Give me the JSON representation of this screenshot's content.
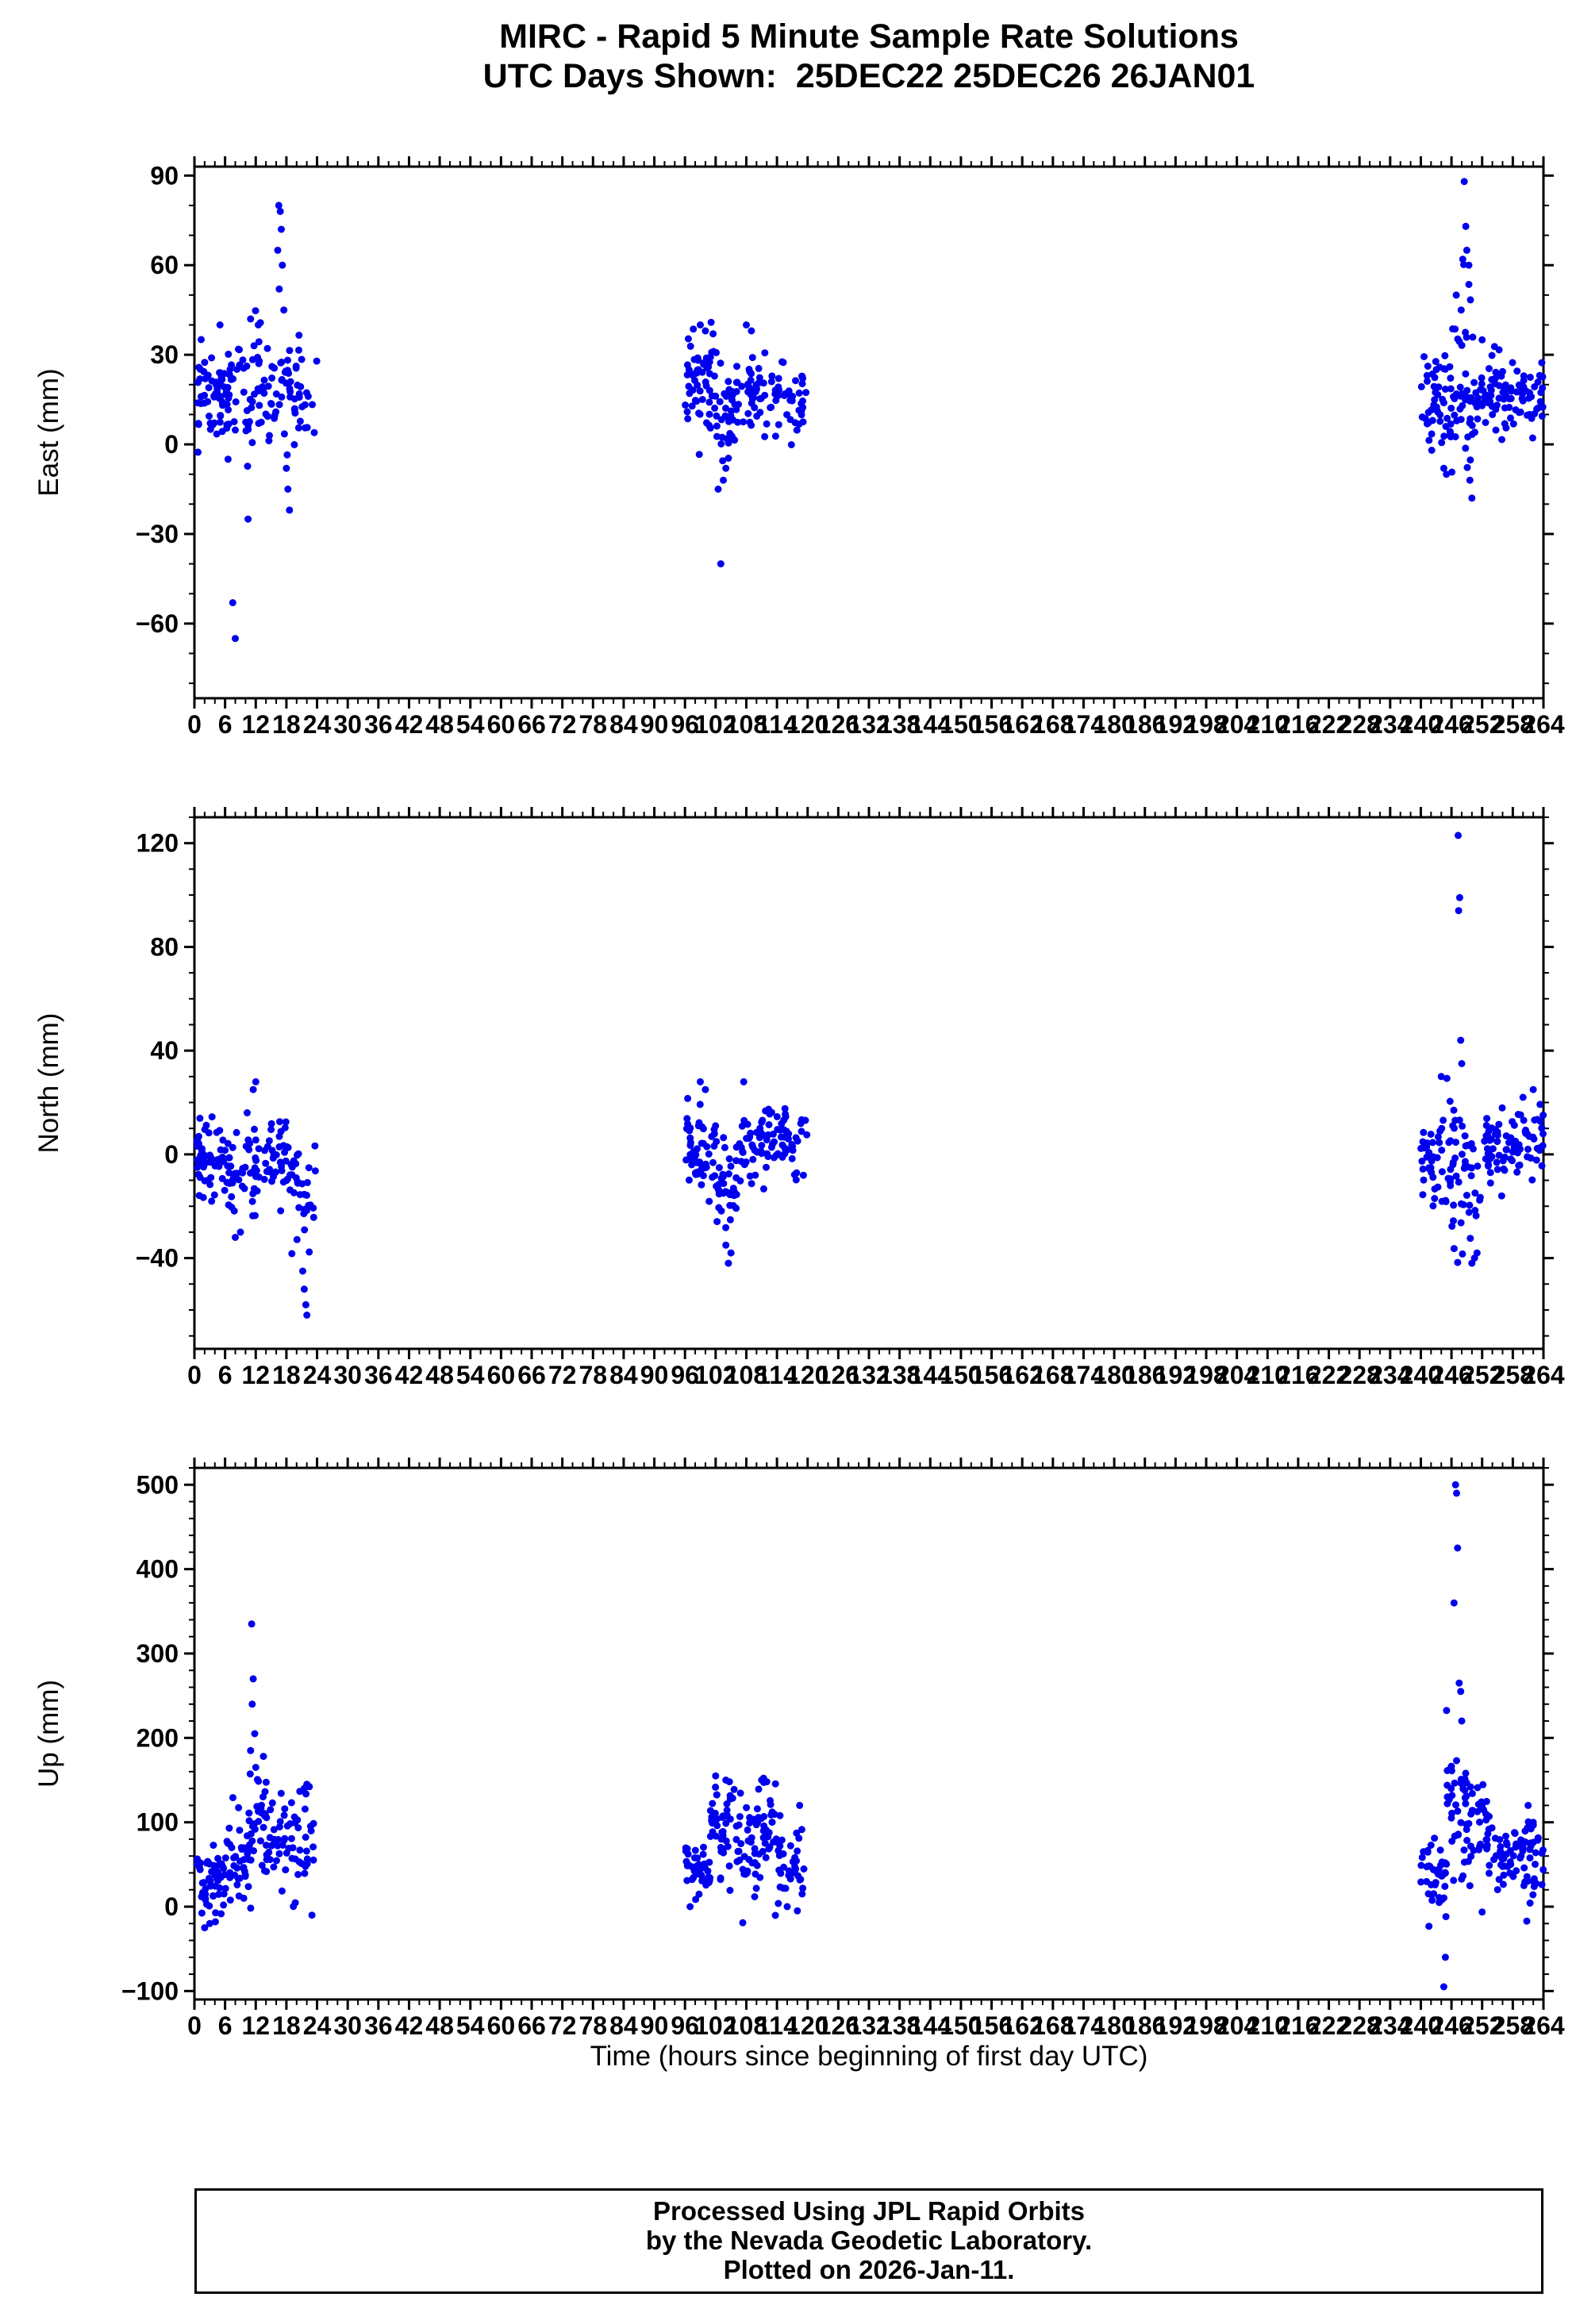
{
  "title": {
    "line1": "MIRC - Rapid 5 Minute Sample Rate Solutions",
    "line2": "UTC Days Shown:  25DEC22 25DEC26 26JAN01"
  },
  "axis_title_x": "Time (hours since beginning of first day UTC)",
  "caption": {
    "line1": "Processed Using JPL Rapid Orbits",
    "line2": "by the Nevada Geodetic Laboratory.",
    "line3": "Plotted on 2026-Jan-11."
  },
  "style": {
    "point_color": "#0000ee",
    "axis_color": "#000000",
    "background": "#ffffff"
  },
  "seed": 20260111,
  "chart_data": [
    {
      "type": "scatter",
      "ylabel": "East (mm)",
      "xlabel": "",
      "xlim": [
        0,
        264
      ],
      "ylim": [
        -85,
        93
      ],
      "xticks_major": 6,
      "xticks_minor": 2,
      "yticks": [
        90,
        60,
        30,
        0,
        -30,
        -60
      ],
      "yticks_minor": 10,
      "marker": "circle",
      "color": "#0000ee",
      "clusters": [
        {
          "label": "25DEC22",
          "segments": [
            {
              "x0": 0.5,
              "x1": 6,
              "n": 50,
              "mean": 16,
              "sd": 7
            },
            {
              "x0": 6,
              "x1": 12,
              "n": 45,
              "mean": 15,
              "sd": 11
            },
            {
              "x0": 12,
              "x1": 19,
              "n": 50,
              "mean": 20,
              "sd": 10
            },
            {
              "x0": 19,
              "x1": 24,
              "n": 25,
              "mean": 18,
              "sd": 7
            }
          ],
          "outliers": [
            [
              7.5,
              -53
            ],
            [
              8,
              -65
            ],
            [
              10.5,
              -25
            ],
            [
              16.5,
              80
            ],
            [
              16.8,
              78
            ],
            [
              17,
              72
            ],
            [
              16.3,
              65
            ],
            [
              17.2,
              60
            ],
            [
              16.6,
              52
            ],
            [
              17.5,
              45
            ],
            [
              18,
              -8
            ],
            [
              18.3,
              -15
            ],
            [
              18.6,
              -22
            ],
            [
              11,
              42
            ],
            [
              5,
              40
            ],
            [
              12.5,
              40
            ]
          ]
        },
        {
          "label": "25DEC26",
          "segments": [
            {
              "x0": 96,
              "x1": 102,
              "n": 55,
              "mean": 20,
              "sd": 8
            },
            {
              "x0": 102,
              "x1": 106,
              "n": 35,
              "mean": 10,
              "sd": 9
            },
            {
              "x0": 106,
              "x1": 113,
              "n": 45,
              "mean": 17,
              "sd": 7
            },
            {
              "x0": 113,
              "x1": 120,
              "n": 40,
              "mean": 15,
              "sd": 7
            }
          ],
          "outliers": [
            [
              103,
              -40
            ],
            [
              102.5,
              -15
            ],
            [
              103.5,
              -12
            ],
            [
              99,
              40
            ],
            [
              100,
              38
            ],
            [
              108,
              40
            ],
            [
              109,
              38
            ],
            [
              104,
              -8
            ]
          ]
        },
        {
          "label": "26JAN01",
          "segments": [
            {
              "x0": 240,
              "x1": 246,
              "n": 50,
              "mean": 14,
              "sd": 9
            },
            {
              "x0": 246,
              "x1": 251,
              "n": 45,
              "mean": 22,
              "sd": 14
            },
            {
              "x0": 251,
              "x1": 257,
              "n": 45,
              "mean": 17,
              "sd": 7
            },
            {
              "x0": 257,
              "x1": 264,
              "n": 45,
              "mean": 16,
              "sd": 6
            }
          ],
          "outliers": [
            [
              248.5,
              88
            ],
            [
              248.8,
              73
            ],
            [
              249,
              65
            ],
            [
              248.2,
              62
            ],
            [
              249.4,
              60
            ],
            [
              247.9,
              45
            ],
            [
              250,
              -18
            ],
            [
              249.6,
              -12
            ],
            [
              245,
              -10
            ],
            [
              244.5,
              -8
            ],
            [
              252,
              35
            ]
          ]
        }
      ]
    },
    {
      "type": "scatter",
      "ylabel": "North (mm)",
      "xlabel": "",
      "xlim": [
        0,
        264
      ],
      "ylim": [
        -75,
        130
      ],
      "xticks_major": 6,
      "xticks_minor": 2,
      "yticks": [
        120,
        80,
        40,
        0,
        -40
      ],
      "yticks_minor": 10,
      "marker": "circle",
      "color": "#0000ee",
      "clusters": [
        {
          "label": "25DEC22",
          "segments": [
            {
              "x0": 0.5,
              "x1": 6,
              "n": 50,
              "mean": -3,
              "sd": 7
            },
            {
              "x0": 6,
              "x1": 12,
              "n": 45,
              "mean": -4,
              "sd": 10
            },
            {
              "x0": 12,
              "x1": 19,
              "n": 45,
              "mean": -2,
              "sd": 8
            },
            {
              "x0": 19,
              "x1": 24,
              "n": 30,
              "mean": -15,
              "sd": 10
            }
          ],
          "outliers": [
            [
              21.2,
              -45
            ],
            [
              21.5,
              -52
            ],
            [
              21.8,
              -58
            ],
            [
              22,
              -62
            ],
            [
              12,
              28
            ],
            [
              11.5,
              25
            ],
            [
              8,
              -32
            ],
            [
              9,
              -30
            ]
          ]
        },
        {
          "label": "25DEC26",
          "segments": [
            {
              "x0": 96,
              "x1": 102,
              "n": 50,
              "mean": 2,
              "sd": 8
            },
            {
              "x0": 102,
              "x1": 107,
              "n": 40,
              "mean": -12,
              "sd": 11
            },
            {
              "x0": 107,
              "x1": 113,
              "n": 45,
              "mean": 4,
              "sd": 7
            },
            {
              "x0": 113,
              "x1": 120,
              "n": 40,
              "mean": 4,
              "sd": 6
            }
          ],
          "outliers": [
            [
              104.5,
              -42
            ],
            [
              105,
              -38
            ],
            [
              104,
              -35
            ],
            [
              99,
              28
            ],
            [
              107.5,
              28
            ],
            [
              100,
              25
            ]
          ]
        },
        {
          "label": "26JAN01",
          "segments": [
            {
              "x0": 240,
              "x1": 246,
              "n": 45,
              "mean": -2,
              "sd": 12
            },
            {
              "x0": 246,
              "x1": 252,
              "n": 45,
              "mean": -8,
              "sd": 14
            },
            {
              "x0": 252,
              "x1": 258,
              "n": 45,
              "mean": 3,
              "sd": 8
            },
            {
              "x0": 258,
              "x1": 264,
              "n": 40,
              "mean": 4,
              "sd": 7
            }
          ],
          "outliers": [
            [
              247.3,
              123
            ],
            [
              247.6,
              99
            ],
            [
              247.4,
              94
            ],
            [
              247.8,
              44
            ],
            [
              248,
              35
            ],
            [
              250,
              -42
            ],
            [
              250.5,
              -40
            ],
            [
              251,
              -38
            ],
            [
              244,
              30
            ],
            [
              262,
              25
            ],
            [
              260,
              22
            ]
          ]
        }
      ]
    },
    {
      "type": "scatter",
      "ylabel": "Up (mm)",
      "xlabel": "Time (hours since beginning of first day UTC)",
      "xlim": [
        0,
        264
      ],
      "ylim": [
        -110,
        520
      ],
      "xticks_major": 6,
      "xticks_minor": 2,
      "yticks": [
        500,
        400,
        300,
        200,
        100,
        0,
        -100
      ],
      "yticks_minor": 20,
      "marker": "circle",
      "color": "#0000ee",
      "clusters": [
        {
          "label": "25DEC22",
          "segments": [
            {
              "x0": 0.5,
              "x1": 6,
              "n": 50,
              "mean": 30,
              "sd": 18
            },
            {
              "x0": 6,
              "x1": 10,
              "n": 35,
              "mean": 55,
              "sd": 30
            },
            {
              "x0": 10,
              "x1": 14,
              "n": 35,
              "mean": 95,
              "sd": 35
            },
            {
              "x0": 14,
              "x1": 19,
              "n": 35,
              "mean": 70,
              "sd": 30
            },
            {
              "x0": 19,
              "x1": 24,
              "n": 30,
              "mean": 80,
              "sd": 35
            }
          ],
          "outliers": [
            [
              11.2,
              335
            ],
            [
              11.5,
              270
            ],
            [
              11.3,
              240
            ],
            [
              11.8,
              205
            ],
            [
              11,
              185
            ],
            [
              12,
              165
            ],
            [
              2,
              -25
            ],
            [
              3,
              -20
            ],
            [
              22,
              145
            ],
            [
              21.5,
              140
            ],
            [
              23,
              -10
            ]
          ]
        },
        {
          "label": "25DEC26",
          "segments": [
            {
              "x0": 96,
              "x1": 101,
              "n": 45,
              "mean": 45,
              "sd": 18
            },
            {
              "x0": 101,
              "x1": 106,
              "n": 40,
              "mean": 85,
              "sd": 30
            },
            {
              "x0": 106,
              "x1": 110,
              "n": 35,
              "mean": 65,
              "sd": 30
            },
            {
              "x0": 110,
              "x1": 114,
              "n": 35,
              "mean": 85,
              "sd": 30
            },
            {
              "x0": 114,
              "x1": 120,
              "n": 35,
              "mean": 45,
              "sd": 25
            }
          ],
          "outliers": [
            [
              102,
              155
            ],
            [
              104,
              150
            ],
            [
              111,
              150
            ],
            [
              112,
              148
            ],
            [
              97,
              0
            ],
            [
              116,
              0
            ],
            [
              118,
              -5
            ]
          ]
        },
        {
          "label": "26JAN01",
          "segments": [
            {
              "x0": 240,
              "x1": 245,
              "n": 40,
              "mean": 35,
              "sd": 25
            },
            {
              "x0": 245,
              "x1": 249,
              "n": 40,
              "mean": 110,
              "sd": 45
            },
            {
              "x0": 249,
              "x1": 253,
              "n": 35,
              "mean": 90,
              "sd": 35
            },
            {
              "x0": 253,
              "x1": 259,
              "n": 40,
              "mean": 55,
              "sd": 20
            },
            {
              "x0": 259,
              "x1": 264,
              "n": 40,
              "mean": 55,
              "sd": 25
            }
          ],
          "outliers": [
            [
              246.8,
              500
            ],
            [
              247,
              490
            ],
            [
              247.2,
              425
            ],
            [
              246.5,
              360
            ],
            [
              247.5,
              265
            ],
            [
              247.8,
              255
            ],
            [
              248,
              220
            ],
            [
              244.8,
              -60
            ],
            [
              244.5,
              -95
            ],
            [
              261,
              120
            ],
            [
              262,
              100
            ]
          ]
        }
      ]
    }
  ]
}
